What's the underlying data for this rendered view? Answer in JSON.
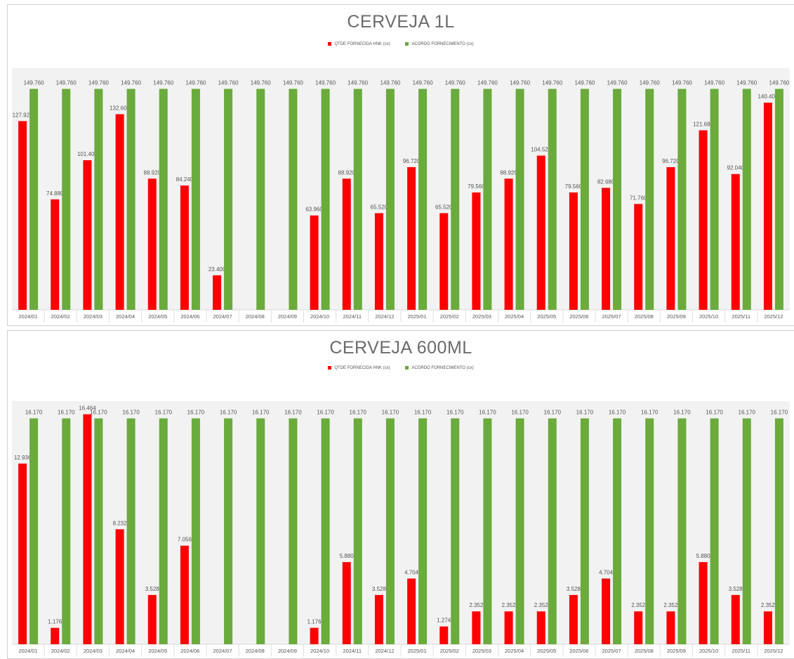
{
  "colors": {
    "supplied": "#ff0000",
    "agreement": "#6aab3c",
    "plot_bg": "#f2f2f2",
    "label": "#555555",
    "title": "#6b6b6b"
  },
  "chart_data": [
    {
      "type": "bar",
      "title": "CERVEJA 1L",
      "legend_placement": "top-center",
      "grid": false,
      "categories": [
        "2024/01",
        "2024/02",
        "2024/03",
        "2024/04",
        "2024/05",
        "2024/06",
        "2024/07",
        "2024/08",
        "2024/09",
        "2024/10",
        "2024/11",
        "2024/12",
        "2025/01",
        "2025/02",
        "2025/03",
        "2025/04",
        "2025/05",
        "2025/06",
        "2025/07",
        "2025/08",
        "2025/09",
        "2025/10",
        "2025/11",
        "2025/12"
      ],
      "ylim": [
        0,
        160
      ],
      "series": [
        {
          "name": "QTDE FORNECIDA HNK (cx)",
          "values": [
            127.92,
            74.88,
            101.4,
            132.6,
            88.92,
            84.24,
            23.4,
            null,
            null,
            63.96,
            88.92,
            65.52,
            96.72,
            65.52,
            79.56,
            88.92,
            104.52,
            79.56,
            82.68,
            71.76,
            96.72,
            121.68,
            92.04,
            140.4
          ],
          "labels": [
            "127.920",
            "74.880",
            "101.400",
            "132.600",
            "88.920",
            "84.240",
            "23.400",
            "",
            "",
            "63.960",
            "88.920",
            "65.520",
            "96.720",
            "65.520",
            "79.560",
            "88.920",
            "104.520",
            "79.560",
            "82.680",
            "71.760",
            "96.720",
            "121.680",
            "92.040",
            "140.400"
          ]
        },
        {
          "name": "ACORDO FORNECIMENTO (cx)",
          "values": [
            149.76,
            149.76,
            149.76,
            149.76,
            149.76,
            149.76,
            149.76,
            149.76,
            149.76,
            149.76,
            149.76,
            149.76,
            149.76,
            149.76,
            149.76,
            149.76,
            149.76,
            149.76,
            149.76,
            149.76,
            149.76,
            149.76,
            149.76,
            149.76
          ],
          "labels": [
            "149.760",
            "149.760",
            "149.760",
            "149.760",
            "149.760",
            "149.760",
            "149.760",
            "149.760",
            "149.760",
            "149.760",
            "149.760",
            "149.760",
            "149.760",
            "149.760",
            "149.760",
            "149.760",
            "149.760",
            "149.760",
            "149.760",
            "149.760",
            "149.760",
            "149.760",
            "149.760",
            "149.760"
          ]
        }
      ]
    },
    {
      "type": "bar",
      "title": "CERVEJA 600ML",
      "legend_placement": "top-center",
      "grid": false,
      "categories": [
        "2024/01",
        "2024/02",
        "2024/03",
        "2024/04",
        "2024/05",
        "2024/06",
        "2024/07",
        "2024/08",
        "2024/09",
        "2024/10",
        "2024/11",
        "2024/12",
        "2025/01",
        "2025/02",
        "2025/03",
        "2025/04",
        "2025/05",
        "2025/06",
        "2025/07",
        "2025/08",
        "2025/09",
        "2025/10",
        "2025/11",
        "2025/12"
      ],
      "ylim": [
        0,
        17
      ],
      "series": [
        {
          "name": "QTDE FORNECIDA HNK (cx)",
          "values": [
            12.936,
            1.176,
            16.464,
            8.232,
            3.528,
            7.056,
            null,
            null,
            null,
            1.176,
            5.88,
            3.528,
            4.704,
            1.274,
            2.352,
            2.352,
            2.352,
            3.528,
            4.704,
            2.352,
            2.352,
            5.88,
            3.528,
            2.352
          ],
          "labels": [
            "12.936",
            "1.176",
            "16.464",
            "8.232",
            "3.528",
            "7.056",
            "",
            "",
            "",
            "1.176",
            "5.880",
            "3.528",
            "4.704",
            "1.274",
            "2.352",
            "2.352",
            "2.352",
            "3.528",
            "4.704",
            "2.352",
            "2.352",
            "5.880",
            "3.528",
            "2.352"
          ]
        },
        {
          "name": "ACORDO FORNECIMENTO (cx)",
          "values": [
            16.17,
            16.17,
            16.17,
            16.17,
            16.17,
            16.17,
            16.17,
            16.17,
            16.17,
            16.17,
            16.17,
            16.17,
            16.17,
            16.17,
            16.17,
            16.17,
            16.17,
            16.17,
            16.17,
            16.17,
            16.17,
            16.17,
            16.17,
            16.17
          ],
          "labels": [
            "16.170",
            "16.170",
            "16.170",
            "16.170",
            "16.170",
            "16.170",
            "16.170",
            "16.170",
            "16.170",
            "16.170",
            "16.170",
            "16.170",
            "16.170",
            "16.170",
            "16.170",
            "16.170",
            "16.170",
            "16.170",
            "16.170",
            "16.170",
            "16.170",
            "16.170",
            "16.170",
            "16.170"
          ]
        }
      ]
    }
  ]
}
